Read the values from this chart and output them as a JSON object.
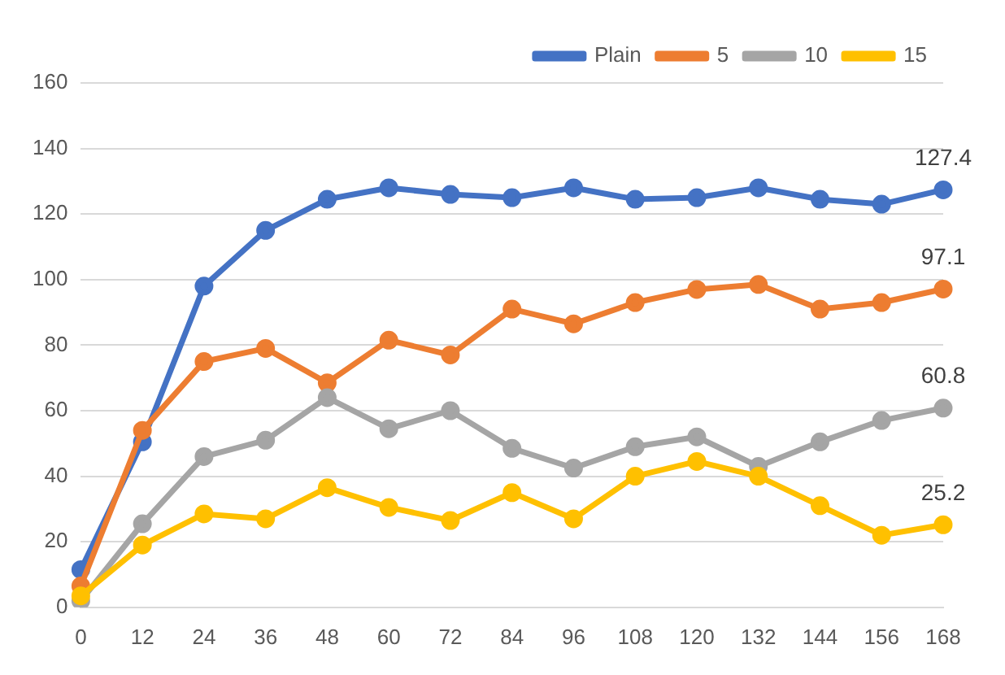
{
  "chart_data": {
    "type": "line",
    "categories": [
      "0",
      "12",
      "24",
      "36",
      "48",
      "60",
      "72",
      "84",
      "96",
      "108",
      "120",
      "132",
      "144",
      "156",
      "168"
    ],
    "series": [
      {
        "name": "Plain",
        "color": "#4472c4",
        "values": [
          11.5,
          50.5,
          98,
          115,
          124.5,
          128,
          126,
          125,
          128,
          124.5,
          125,
          128,
          124.5,
          123,
          127.4
        ],
        "value_labels": [
          null,
          null,
          null,
          null,
          null,
          null,
          null,
          null,
          null,
          null,
          null,
          null,
          null,
          null,
          "127.4"
        ]
      },
      {
        "name": "5",
        "color": "#ed7d31",
        "values": [
          6.5,
          54,
          75,
          79,
          68.5,
          81.5,
          77,
          91,
          86.5,
          93,
          97,
          98.5,
          91,
          93,
          97.1
        ],
        "value_labels": [
          null,
          null,
          null,
          null,
          null,
          null,
          null,
          null,
          null,
          null,
          null,
          null,
          null,
          null,
          "97.1"
        ]
      },
      {
        "name": "10",
        "color": "#a5a5a5",
        "values": [
          2,
          25.5,
          46,
          51,
          64,
          54.5,
          60,
          48.5,
          42.5,
          49,
          52,
          43,
          50.5,
          57,
          60.8
        ],
        "value_labels": [
          null,
          null,
          null,
          null,
          null,
          null,
          null,
          null,
          null,
          null,
          null,
          null,
          null,
          null,
          "60.8"
        ]
      },
      {
        "name": "15",
        "color": "#ffc000",
        "values": [
          3.5,
          19,
          28.5,
          27,
          36.5,
          30.5,
          26.5,
          35,
          27,
          40,
          44.5,
          40,
          31,
          22,
          25.2
        ],
        "value_labels": [
          null,
          null,
          null,
          null,
          null,
          null,
          null,
          null,
          null,
          null,
          null,
          null,
          null,
          null,
          "25.2"
        ]
      }
    ],
    "ylim": [
      0,
      160
    ],
    "yticks": [
      0,
      20,
      40,
      60,
      80,
      100,
      120,
      140,
      160
    ],
    "grid": "y",
    "legend": "top right",
    "marker": "circle",
    "line_style": "solid"
  }
}
